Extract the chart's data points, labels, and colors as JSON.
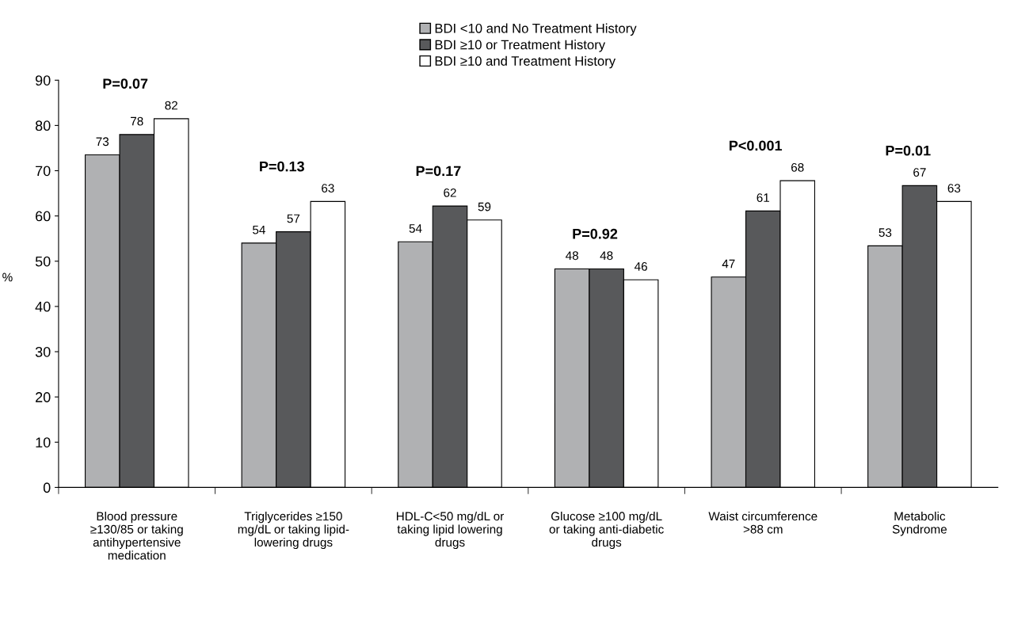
{
  "chart_data": {
    "type": "bar",
    "ylabel": "%",
    "categories": [
      "Blood pressure\n≥130/85 or taking\nantihypertensive\nmedication",
      "Triglycerides ≥150\nmg/dL or taking lipid-\nlowering drugs",
      "HDL-C<50 mg/dL or\ntaking lipid lowering\ndrugs",
      "Glucose ≥100 mg/dL\nor taking anti-diabetic\ndrugs",
      "Waist circumference\n>88 cm",
      "Metabolic\nSyndrome"
    ],
    "series": [
      {
        "name": "BDI <10 and No Treatment History",
        "color": "#b0b1b3",
        "values": [
          73.5,
          54,
          54.3,
          48.3,
          46.5,
          53.4
        ],
        "value_labels": [
          "73",
          "54",
          "54",
          "48",
          "47",
          "53"
        ]
      },
      {
        "name": "BDI ≥10 or Treatment History",
        "color": "#58595b",
        "values": [
          78,
          56.5,
          62.2,
          48.3,
          61.1,
          66.7
        ],
        "value_labels": [
          "78",
          "57",
          "62",
          "48",
          "61",
          "67"
        ]
      },
      {
        "name": "BDI ≥10 and Treatment History",
        "color": "#ffffff",
        "values": [
          81.5,
          63.2,
          59.1,
          45.9,
          67.8,
          63.2
        ],
        "value_labels": [
          "82",
          "63",
          "59",
          "46",
          "68",
          "63"
        ]
      }
    ],
    "annotations": [
      "P=0.07",
      "P=0.13",
      "P=0.17",
      "P=0.92",
      "P<0.001",
      "P=0.01"
    ],
    "ylim": [
      0,
      90
    ],
    "yticks": [
      0,
      10,
      20,
      30,
      40,
      50,
      60,
      70,
      80,
      90
    ],
    "grid": false,
    "legend": "top"
  }
}
